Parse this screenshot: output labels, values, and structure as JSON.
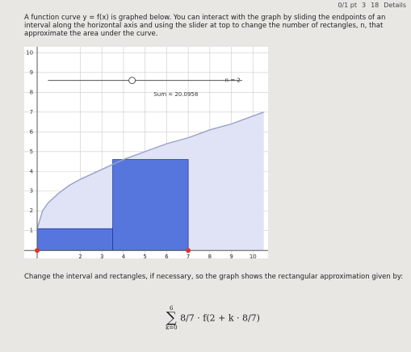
{
  "header": {
    "score": "0/1 pt",
    "attempts": "3",
    "submissions": "18",
    "details": "Details"
  },
  "prompt": "A function curve y = f(x) is graphed below. You can interact with the graph by sliding the endpoints of an interval along the horizontal axis and using the slider at top to change the number of rectangles, n, that approximate the area under the curve.",
  "chart_data": {
    "type": "riemann",
    "xlim": [
      -0.6,
      10.7
    ],
    "ylim": [
      -0.4,
      10.3
    ],
    "xticks": [
      2,
      3,
      4,
      5,
      6,
      7,
      8,
      9,
      10
    ],
    "yticks": [
      1,
      2,
      3,
      4,
      5,
      6,
      7,
      8,
      9,
      10
    ],
    "curve": {
      "color": "#9aa0c8",
      "x": [
        0,
        0.25,
        0.5,
        1,
        1.5,
        2,
        3,
        4,
        5,
        6,
        7,
        8,
        9,
        10,
        10.5
      ],
      "y": [
        1.1,
        2.0,
        2.4,
        2.9,
        3.3,
        3.6,
        4.1,
        4.6,
        5.0,
        5.4,
        5.7,
        6.1,
        6.4,
        6.8,
        7.0
      ]
    },
    "rect_color": "#3f63d8",
    "rectangles": [
      {
        "x": [
          0,
          3.5
        ],
        "height": 1.1
      },
      {
        "x": [
          3.5,
          7
        ],
        "height": 4.6
      }
    ],
    "endpoints": [
      0,
      7
    ],
    "n_label": "n = 2",
    "sum_label": "Sum = 20.0958"
  },
  "instruction": "Change the interval and rectangles, if necessary, so the graph shows the rectangular approximation given by:",
  "formula": {
    "upper": "6",
    "lower": "k=0",
    "body": "8/7 · f(2 + k · 8/7)"
  }
}
